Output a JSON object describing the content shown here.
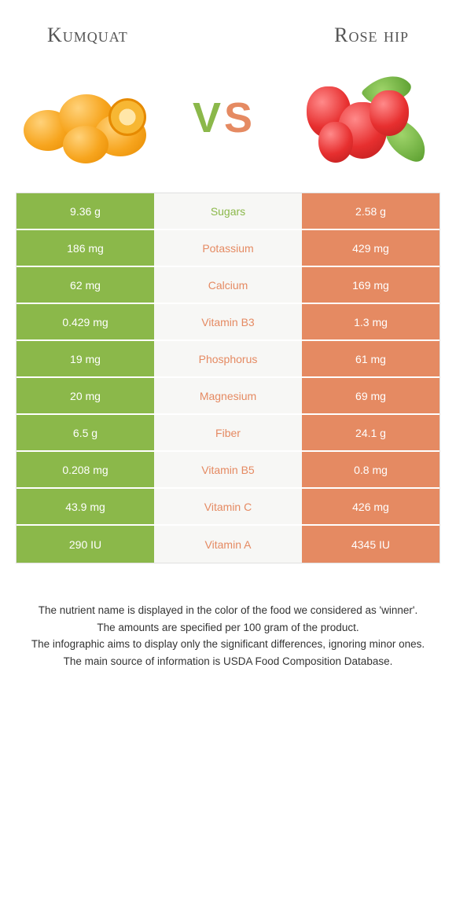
{
  "header": {
    "left_title": "Kumquat",
    "right_title": "Rose hip",
    "vs_letters": {
      "v": "V",
      "s": "S"
    }
  },
  "colors": {
    "left": "#8bb84a",
    "right": "#e58a62",
    "mid_bg": "#f7f7f5",
    "row_border": "#ffffff",
    "text_white": "#ffffff"
  },
  "nutrients": [
    {
      "label": "Sugars",
      "left": "9.36 g",
      "right": "2.58 g",
      "winner": "left"
    },
    {
      "label": "Potassium",
      "left": "186 mg",
      "right": "429 mg",
      "winner": "right"
    },
    {
      "label": "Calcium",
      "left": "62 mg",
      "right": "169 mg",
      "winner": "right"
    },
    {
      "label": "Vitamin B3",
      "left": "0.429 mg",
      "right": "1.3 mg",
      "winner": "right"
    },
    {
      "label": "Phosphorus",
      "left": "19 mg",
      "right": "61 mg",
      "winner": "right"
    },
    {
      "label": "Magnesium",
      "left": "20 mg",
      "right": "69 mg",
      "winner": "right"
    },
    {
      "label": "Fiber",
      "left": "6.5 g",
      "right": "24.1 g",
      "winner": "right"
    },
    {
      "label": "Vitamin B5",
      "left": "0.208 mg",
      "right": "0.8 mg",
      "winner": "right"
    },
    {
      "label": "Vitamin C",
      "left": "43.9 mg",
      "right": "426 mg",
      "winner": "right"
    },
    {
      "label": "Vitamin A",
      "left": "290 IU",
      "right": "4345 IU",
      "winner": "right"
    }
  ],
  "footnotes": [
    "The nutrient name is displayed in the color of the food we considered as 'winner'.",
    "The amounts are specified per 100 gram of the product.",
    "The infographic aims to display only the significant differences, ignoring minor ones.",
    "The main source of information is USDA Food Composition Database."
  ]
}
